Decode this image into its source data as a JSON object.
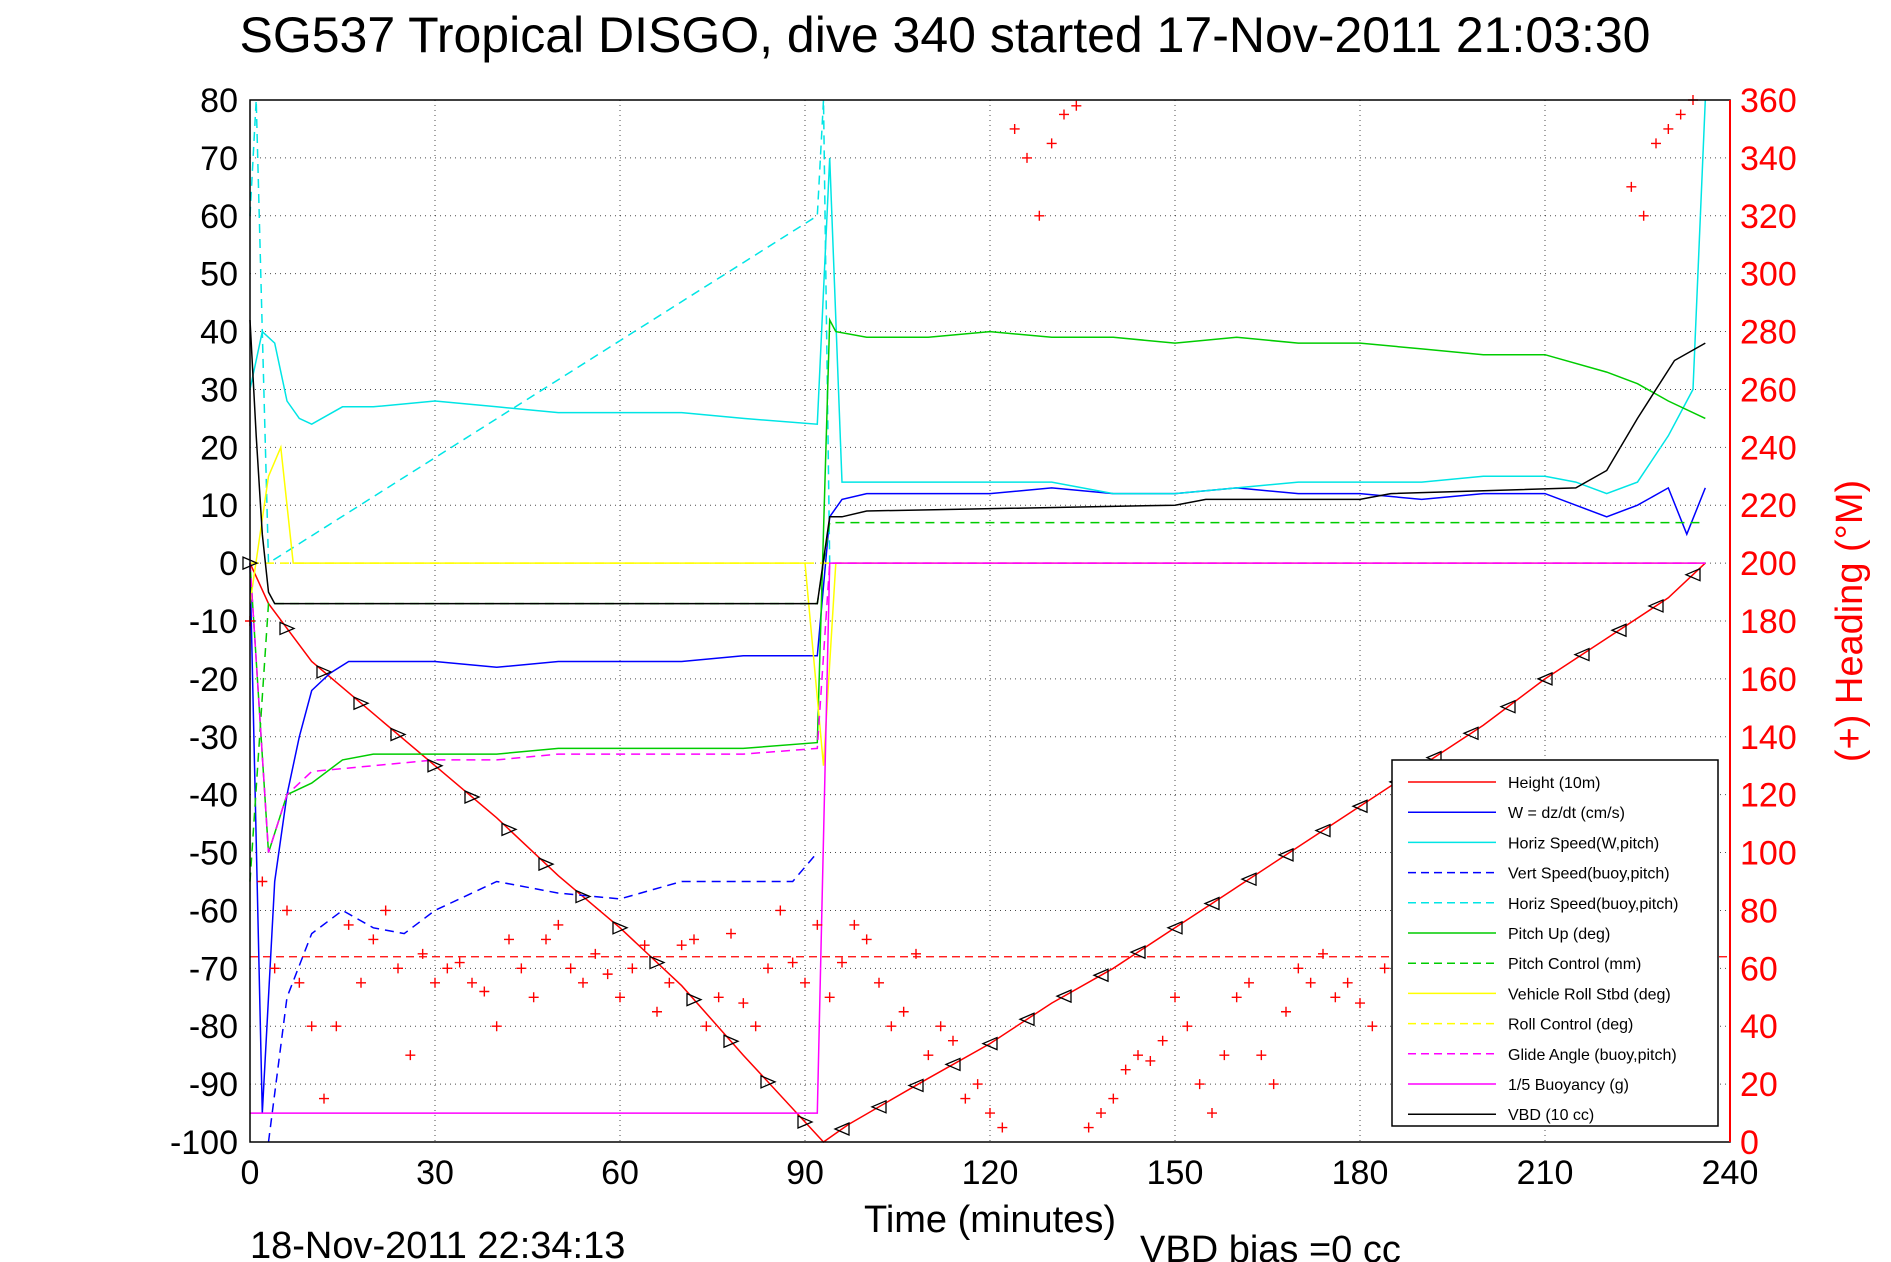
{
  "chart_data": {
    "type": "line",
    "title": "SG537 Tropical DISGO, dive 340 started 17-Nov-2011 21:03:30",
    "xlabel": "Time (minutes)",
    "ylabel_right": "(+) Heading (°M)",
    "footer_left": "18-Nov-2011 22:34:13",
    "footer_right": "VBD bias =0 cc",
    "xlim": [
      0,
      240
    ],
    "ylim": [
      -100,
      80
    ],
    "ylim_right": [
      0,
      360
    ],
    "x_ticks": [
      "0",
      "30",
      "60",
      "90",
      "120",
      "150",
      "180",
      "210",
      "240"
    ],
    "y_ticks": [
      "80",
      "70",
      "60",
      "50",
      "40",
      "30",
      "20",
      "10",
      "0",
      "-10",
      "-20",
      "-30",
      "-40",
      "-50",
      "-60",
      "-70",
      "-80",
      "-90",
      "-100"
    ],
    "y_ticks_right": [
      "360",
      "340",
      "320",
      "300",
      "280",
      "260",
      "240",
      "220",
      "200",
      "180",
      "160",
      "140",
      "120",
      "100",
      "80",
      "60",
      "40",
      "20",
      "0"
    ],
    "grid": true,
    "legend_position": "bottom-right",
    "series": [
      {
        "name": "Height (10m)",
        "color": "#ff0000",
        "style": "solid",
        "x": [
          0,
          3,
          10,
          20,
          30,
          40,
          50,
          60,
          70,
          80,
          93,
          97,
          110,
          120,
          130,
          140,
          150,
          160,
          170,
          180,
          190,
          200,
          210,
          220,
          230,
          236
        ],
        "y": [
          0,
          -7,
          -17,
          -26,
          -35,
          -44,
          -54,
          -63,
          -73,
          -85,
          -100,
          -97,
          -89,
          -83,
          -76,
          -70,
          -63,
          -56,
          -49,
          -42,
          -35,
          -28,
          -20,
          -13,
          -6,
          0
        ]
      },
      {
        "name": "W = dz/dt (cm/s)",
        "color": "#0000ff",
        "style": "solid",
        "x": [
          0,
          2,
          4,
          6,
          8,
          10,
          13,
          16,
          20,
          25,
          30,
          40,
          50,
          60,
          70,
          80,
          88,
          92,
          94,
          96,
          100,
          110,
          120,
          130,
          140,
          150,
          160,
          170,
          180,
          190,
          200,
          210,
          215,
          220,
          225,
          230,
          233,
          236
        ],
        "y": [
          0,
          -95,
          -55,
          -40,
          -30,
          -22,
          -19,
          -17,
          -17,
          -17,
          -17,
          -18,
          -17,
          -17,
          -17,
          -16,
          -16,
          -16,
          8,
          11,
          12,
          12,
          12,
          13,
          12,
          12,
          13,
          12,
          12,
          11,
          12,
          12,
          10,
          8,
          10,
          13,
          5,
          13
        ]
      },
      {
        "name": "Horiz Speed(W,pitch)",
        "color": "#00e5e5",
        "style": "solid",
        "x": [
          0,
          2,
          4,
          6,
          8,
          10,
          15,
          20,
          30,
          40,
          50,
          60,
          70,
          80,
          92,
          94,
          96,
          100,
          110,
          120,
          130,
          140,
          150,
          160,
          170,
          180,
          190,
          200,
          210,
          215,
          220,
          225,
          230,
          234,
          236
        ],
        "y": [
          30,
          40,
          38,
          28,
          25,
          24,
          27,
          27,
          28,
          27,
          26,
          26,
          26,
          25,
          24,
          70,
          14,
          14,
          14,
          14,
          14,
          12,
          12,
          13,
          14,
          14,
          14,
          15,
          15,
          14,
          12,
          14,
          22,
          30,
          80
        ]
      },
      {
        "name": "Vert Speed(buoy,pitch)",
        "color": "#0000ff",
        "style": "dashed",
        "x": [
          3,
          6,
          10,
          15,
          20,
          25,
          30,
          40,
          50,
          60,
          70,
          80,
          88,
          92
        ],
        "y": [
          -100,
          -75,
          -64,
          -60,
          -63,
          -64,
          -60,
          -55,
          -57,
          -58,
          -55,
          -55,
          -55,
          -50
        ]
      },
      {
        "name": "Horiz Speed(buoy,pitch)",
        "color": "#00e5e5",
        "style": "dashed",
        "x": [
          0,
          1,
          2,
          3,
          92,
          93,
          94
        ],
        "y": [
          60,
          80,
          40,
          0,
          60,
          80,
          0
        ]
      },
      {
        "name": "Pitch Up (deg)",
        "color": "#00cc00",
        "style": "solid",
        "x": [
          0,
          3,
          6,
          10,
          15,
          20,
          30,
          40,
          50,
          60,
          70,
          80,
          92,
          94,
          95,
          100,
          110,
          120,
          130,
          140,
          150,
          160,
          170,
          180,
          190,
          200,
          210,
          220,
          225,
          230,
          236
        ],
        "y": [
          0,
          -50,
          -40,
          -38,
          -34,
          -33,
          -33,
          -33,
          -32,
          -32,
          -32,
          -32,
          -31,
          42,
          40,
          39,
          39,
          40,
          39,
          39,
          38,
          39,
          38,
          38,
          37,
          36,
          36,
          33,
          31,
          28,
          25
        ]
      },
      {
        "name": "Pitch Control (mm)",
        "color": "#00cc00",
        "style": "dashed",
        "x": [
          0,
          3,
          92,
          94,
          236
        ],
        "y": [
          -55,
          -7,
          -7,
          7,
          7
        ]
      },
      {
        "name": "Vehicle Roll Stbd (deg)",
        "color": "#ffff00",
        "style": "solid",
        "x": [
          0,
          3,
          5,
          7,
          10,
          20,
          30,
          40,
          50,
          60,
          70,
          80,
          90,
          93,
          95,
          100,
          110,
          120,
          130,
          140,
          150,
          160,
          170,
          180,
          190,
          200,
          210,
          220,
          230,
          236
        ],
        "y": [
          -7,
          15,
          20,
          0,
          0,
          0,
          0,
          0,
          0,
          0,
          0,
          0,
          0,
          -35,
          0,
          0,
          0,
          0,
          0,
          0,
          0,
          0,
          0,
          0,
          0,
          0,
          0,
          0,
          0,
          0
        ]
      },
      {
        "name": "Roll Control (deg)",
        "color": "#ffff00",
        "style": "dashed",
        "x": [
          0,
          236
        ],
        "y": [
          0,
          0
        ]
      },
      {
        "name": "Glide Angle (buoy,pitch)",
        "color": "#ff00ff",
        "style": "dashed",
        "x": [
          0,
          3,
          6,
          10,
          20,
          30,
          40,
          50,
          60,
          70,
          80,
          92,
          94,
          236
        ],
        "y": [
          0,
          -50,
          -40,
          -36,
          -35,
          -34,
          -34,
          -33,
          -33,
          -33,
          -33,
          -32,
          0,
          0
        ]
      },
      {
        "name": "1/5 Buoyancy (g)",
        "color": "#ff00ff",
        "style": "solid",
        "x": [
          0,
          92,
          94,
          236
        ],
        "y": [
          -95,
          -95,
          0,
          0
        ]
      },
      {
        "name": "VBD (10 cc)",
        "color": "#000000",
        "style": "solid",
        "x": [
          0,
          1,
          2,
          3,
          4,
          6,
          92,
          94,
          96,
          100,
          150,
          155,
          180,
          185,
          215,
          220,
          225,
          228,
          231,
          236
        ],
        "y": [
          42,
          22,
          5,
          -5,
          -7,
          -7,
          -7,
          8,
          8,
          9,
          10,
          11,
          11,
          12,
          13,
          16,
          25,
          30,
          35,
          38
        ]
      }
    ],
    "heading_series": {
      "name": "Heading",
      "color": "#ff0000",
      "marker": "+",
      "axis": "right",
      "x": [
        0,
        2,
        4,
        6,
        8,
        10,
        12,
        14,
        16,
        18,
        20,
        22,
        24,
        26,
        28,
        30,
        32,
        34,
        36,
        38,
        40,
        42,
        44,
        46,
        48,
        50,
        52,
        54,
        56,
        58,
        60,
        62,
        64,
        66,
        68,
        70,
        72,
        74,
        76,
        78,
        80,
        82,
        84,
        86,
        88,
        90,
        92,
        94,
        96,
        98,
        100,
        102,
        104,
        106,
        108,
        110,
        112,
        114,
        116,
        118,
        120,
        122,
        124,
        126,
        128,
        130,
        132,
        134,
        136,
        138,
        140,
        142,
        144,
        146,
        148,
        150,
        152,
        154,
        156,
        158,
        160,
        162,
        164,
        166,
        168,
        170,
        172,
        174,
        176,
        178,
        180,
        182,
        184,
        186,
        188,
        190,
        192,
        194,
        196,
        198,
        200,
        202,
        204,
        206,
        208,
        210,
        212,
        214,
        216,
        218,
        220,
        222,
        224,
        226,
        228,
        230,
        232,
        234
      ],
      "y": [
        180,
        90,
        60,
        80,
        55,
        40,
        15,
        40,
        75,
        55,
        70,
        80,
        60,
        30,
        65,
        55,
        60,
        62,
        55,
        52,
        40,
        70,
        60,
        50,
        70,
        75,
        60,
        55,
        65,
        58,
        50,
        60,
        68,
        45,
        55,
        68,
        70,
        40,
        50,
        72,
        48,
        40,
        60,
        80,
        62,
        55,
        75,
        50,
        62,
        75,
        70,
        55,
        40,
        45,
        65,
        30,
        40,
        35,
        15,
        20,
        10,
        5,
        350,
        340,
        320,
        345,
        355,
        358,
        5,
        10,
        15,
        25,
        30,
        28,
        35,
        50,
        40,
        20,
        10,
        30,
        50,
        55,
        30,
        20,
        45,
        60,
        55,
        65,
        50,
        55,
        48,
        40,
        60,
        55,
        65,
        58,
        70,
        50,
        60,
        45,
        40,
        55,
        45,
        60,
        50,
        40,
        45,
        55,
        60,
        50,
        45,
        40,
        330,
        320,
        345,
        350,
        355,
        360
      ]
    },
    "heading_reference": {
      "name": "Heading reference",
      "color": "#ff0000",
      "style": "dashed",
      "axis": "right",
      "y": 64
    }
  }
}
